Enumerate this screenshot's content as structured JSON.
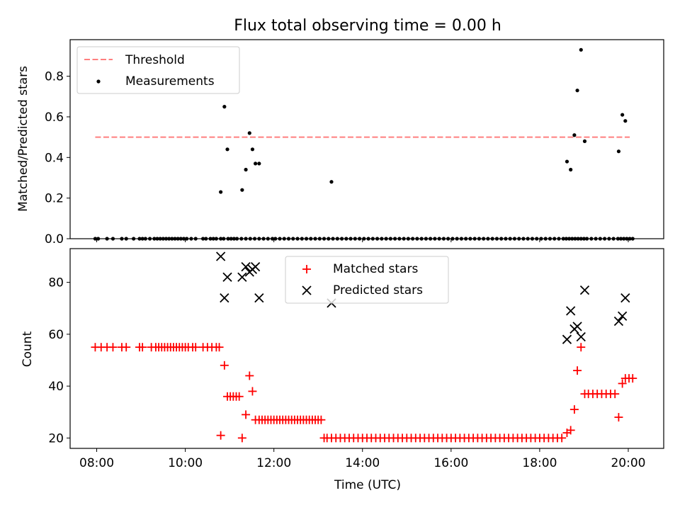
{
  "chart_data": [
    {
      "type": "scatter",
      "title": "Flux total observing time = 0.00 h",
      "xlabel": "",
      "ylabel": "Matched/Predicted stars",
      "xlim": [
        "07:24",
        "20:48"
      ],
      "ylim": [
        0,
        0.98
      ],
      "x_ticks": [
        "08:00",
        "10:00",
        "12:00",
        "14:00",
        "16:00",
        "18:00",
        "20:00"
      ],
      "y_ticks": [
        "0.0",
        "0.2",
        "0.4",
        "0.6",
        "0.8"
      ],
      "legend_position": "top-left",
      "series": [
        {
          "name": "Threshold",
          "style": "dashed-line",
          "color": "#ff7f7f",
          "x": [
            "07:58",
            "20:02"
          ],
          "values": [
            0.5,
            0.5
          ]
        },
        {
          "name": "Measurements",
          "style": "dot",
          "color": "#000000",
          "x": [
            "07:58",
            "08:02",
            "08:14",
            "08:22",
            "08:34",
            "08:40",
            "08:50",
            "08:58",
            "09:02",
            "09:06",
            "09:12",
            "09:18",
            "09:22",
            "09:26",
            "09:30",
            "09:34",
            "09:38",
            "09:42",
            "09:46",
            "09:50",
            "09:54",
            "09:58",
            "10:02",
            "10:08",
            "10:14",
            "10:24",
            "10:28",
            "10:34",
            "10:38",
            "10:42",
            "10:48",
            "10:52",
            "10:58",
            "11:02",
            "11:06",
            "11:10",
            "11:16",
            "11:22",
            "11:28",
            "11:34",
            "11:40",
            "11:46",
            "11:52",
            "11:58",
            "12:02",
            "12:08",
            "12:14",
            "12:20",
            "12:26",
            "12:32",
            "12:38",
            "12:44",
            "12:50",
            "12:56",
            "13:02",
            "13:08",
            "13:14",
            "13:20",
            "13:26",
            "13:32",
            "13:38",
            "13:44",
            "13:50",
            "13:56",
            "14:02",
            "14:08",
            "14:14",
            "14:20",
            "14:26",
            "14:32",
            "14:38",
            "14:44",
            "14:50",
            "14:56",
            "15:02",
            "15:08",
            "15:14",
            "15:20",
            "15:26",
            "15:32",
            "15:38",
            "15:44",
            "15:50",
            "15:56",
            "16:02",
            "16:08",
            "16:14",
            "16:20",
            "16:26",
            "16:32",
            "16:38",
            "16:44",
            "16:50",
            "16:56",
            "17:02",
            "17:08",
            "17:14",
            "17:20",
            "17:26",
            "17:32",
            "17:38",
            "17:44",
            "17:50",
            "17:56",
            "18:02",
            "18:08",
            "18:14",
            "18:20",
            "18:26",
            "18:32",
            "18:36",
            "18:40",
            "18:44",
            "18:48",
            "18:52",
            "18:56",
            "19:00",
            "19:04",
            "19:10",
            "19:16",
            "19:22",
            "19:28",
            "19:34",
            "19:40",
            "19:46",
            "19:50",
            "19:54",
            "19:58",
            "20:02",
            "20:06",
            "10:48",
            "10:53",
            "10:57",
            "11:17",
            "11:22",
            "11:27",
            "11:31",
            "11:35",
            "11:40",
            "13:18",
            "18:37",
            "18:42",
            "18:47",
            "18:51",
            "18:56",
            "19:01",
            "19:47",
            "19:52",
            "19:56"
          ],
          "values": [
            0,
            0,
            0,
            0,
            0,
            0,
            0,
            0,
            0,
            0,
            0,
            0,
            0,
            0,
            0,
            0,
            0,
            0,
            0,
            0,
            0,
            0,
            0,
            0,
            0,
            0,
            0,
            0,
            0,
            0,
            0,
            0,
            0,
            0,
            0,
            0,
            0,
            0,
            0,
            0,
            0,
            0,
            0,
            0,
            0,
            0,
            0,
            0,
            0,
            0,
            0,
            0,
            0,
            0,
            0,
            0,
            0,
            0,
            0,
            0,
            0,
            0,
            0,
            0,
            0,
            0,
            0,
            0,
            0,
            0,
            0,
            0,
            0,
            0,
            0,
            0,
            0,
            0,
            0,
            0,
            0,
            0,
            0,
            0,
            0,
            0,
            0,
            0,
            0,
            0,
            0,
            0,
            0,
            0,
            0,
            0,
            0,
            0,
            0,
            0,
            0,
            0,
            0,
            0,
            0,
            0,
            0,
            0,
            0,
            0,
            0,
            0,
            0,
            0,
            0,
            0,
            0,
            0,
            0,
            0,
            0,
            0,
            0,
            0,
            0,
            0,
            0,
            0,
            0,
            0,
            0.23,
            0.65,
            0.44,
            0.24,
            0.34,
            0.52,
            0.44,
            0.37,
            0.37,
            0.28,
            0.38,
            0.34,
            0.51,
            0.73,
            0.93,
            0.48,
            0.43,
            0.61,
            0.58
          ]
        }
      ]
    },
    {
      "type": "scatter",
      "title": "",
      "xlabel": "Time (UTC)",
      "ylabel": "Count",
      "xlim": [
        "07:24",
        "20:48"
      ],
      "ylim": [
        16,
        93
      ],
      "x_ticks": [
        "08:00",
        "10:00",
        "12:00",
        "14:00",
        "16:00",
        "18:00",
        "20:00"
      ],
      "y_ticks": [
        "20",
        "40",
        "60",
        "80"
      ],
      "legend_position": "top-center",
      "series": [
        {
          "name": "Matched stars",
          "style": "plus",
          "color": "#ff0000",
          "x": [
            "07:58",
            "08:06",
            "08:14",
            "08:22",
            "08:34",
            "08:40",
            "08:58",
            "09:02",
            "09:14",
            "09:20",
            "09:24",
            "09:28",
            "09:32",
            "09:36",
            "09:40",
            "09:44",
            "09:48",
            "09:52",
            "09:56",
            "10:00",
            "10:04",
            "10:10",
            "10:14",
            "10:24",
            "10:30",
            "10:36",
            "10:42",
            "10:46",
            "10:48",
            "10:53",
            "10:57",
            "11:01",
            "11:05",
            "11:09",
            "11:13",
            "11:17",
            "11:22",
            "11:27",
            "11:31",
            "11:35",
            "11:40",
            "11:44",
            "11:48",
            "11:52",
            "11:56",
            "12:00",
            "12:04",
            "12:08",
            "12:12",
            "12:16",
            "12:20",
            "12:24",
            "12:28",
            "12:32",
            "12:36",
            "12:40",
            "12:44",
            "12:48",
            "12:52",
            "12:56",
            "13:00",
            "13:04",
            "13:08",
            "13:12",
            "13:18",
            "13:24",
            "13:30",
            "13:36",
            "13:42",
            "13:48",
            "13:54",
            "14:00",
            "14:06",
            "14:12",
            "14:18",
            "14:24",
            "14:30",
            "14:36",
            "14:42",
            "14:48",
            "14:54",
            "15:00",
            "15:06",
            "15:12",
            "15:18",
            "15:24",
            "15:30",
            "15:36",
            "15:42",
            "15:48",
            "15:54",
            "16:00",
            "16:06",
            "16:12",
            "16:18",
            "16:24",
            "16:30",
            "16:36",
            "16:42",
            "16:48",
            "16:54",
            "17:00",
            "17:06",
            "17:12",
            "17:18",
            "17:24",
            "17:30",
            "17:36",
            "17:42",
            "17:48",
            "17:54",
            "18:00",
            "18:06",
            "18:12",
            "18:18",
            "18:24",
            "18:30",
            "18:37",
            "18:42",
            "18:47",
            "18:51",
            "18:56",
            "19:01",
            "19:06",
            "19:12",
            "19:18",
            "19:24",
            "19:30",
            "19:36",
            "19:42",
            "19:47",
            "19:52",
            "19:56",
            "20:01",
            "20:06"
          ],
          "values": [
            55,
            55,
            55,
            55,
            55,
            55,
            55,
            55,
            55,
            55,
            55,
            55,
            55,
            55,
            55,
            55,
            55,
            55,
            55,
            55,
            55,
            55,
            55,
            55,
            55,
            55,
            55,
            55,
            21,
            48,
            36,
            36,
            36,
            36,
            36,
            20,
            29,
            44,
            38,
            27,
            27,
            27,
            27,
            27,
            27,
            27,
            27,
            27,
            27,
            27,
            27,
            27,
            27,
            27,
            27,
            27,
            27,
            27,
            27,
            27,
            27,
            27,
            20,
            20,
            20,
            20,
            20,
            20,
            20,
            20,
            20,
            20,
            20,
            20,
            20,
            20,
            20,
            20,
            20,
            20,
            20,
            20,
            20,
            20,
            20,
            20,
            20,
            20,
            20,
            20,
            20,
            20,
            20,
            20,
            20,
            20,
            20,
            20,
            20,
            20,
            20,
            20,
            20,
            20,
            20,
            20,
            20,
            20,
            20,
            20,
            20,
            20,
            20,
            20,
            20,
            20,
            20,
            22,
            23,
            31,
            46,
            55,
            37,
            37,
            37,
            37,
            37,
            37,
            37,
            37,
            28,
            41,
            43,
            43,
            43
          ]
        },
        {
          "name": "Predicted stars",
          "style": "x",
          "color": "#000000",
          "x": [
            "10:48",
            "10:53",
            "10:57",
            "11:17",
            "11:22",
            "11:27",
            "11:31",
            "11:35",
            "11:40",
            "13:18",
            "18:37",
            "18:42",
            "18:47",
            "18:51",
            "18:56",
            "19:01",
            "19:47",
            "19:52",
            "19:56"
          ],
          "values": [
            90,
            74,
            82,
            82,
            86,
            84,
            85,
            86,
            74,
            72,
            58,
            69,
            62,
            63,
            59,
            77,
            65,
            67,
            74
          ]
        }
      ]
    }
  ]
}
